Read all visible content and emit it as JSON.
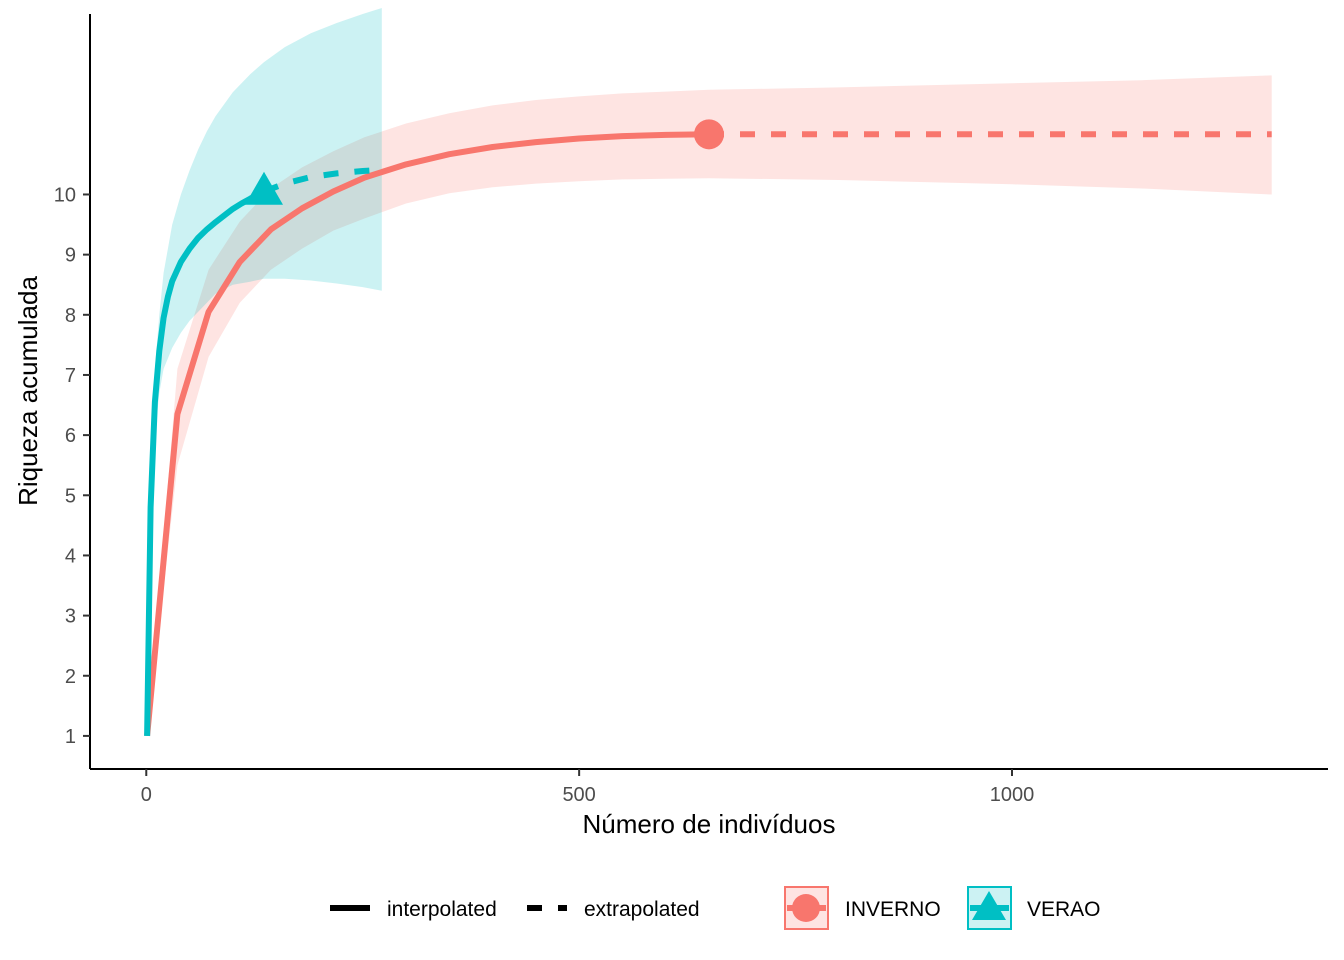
{
  "chart_data": {
    "type": "line",
    "xlabel": "Número de indivíduos",
    "ylabel": "Riqueza acumulada",
    "xlim": [
      -65,
      1365
    ],
    "ylim": [
      0.45,
      13.0
    ],
    "x_ticks": [
      0,
      500,
      1000
    ],
    "x_tick_labels": [
      "0",
      "500",
      "1000"
    ],
    "y_ticks": [
      1,
      2,
      3,
      4,
      5,
      6,
      7,
      8,
      9,
      10
    ],
    "y_tick_labels": [
      "1",
      "2",
      "3",
      "4",
      "5",
      "6",
      "7",
      "8",
      "9",
      "10"
    ],
    "grid": false,
    "legend_position": "bottom",
    "legend": {
      "method_items": [
        {
          "key": "interpolated",
          "label": "interpolated"
        },
        {
          "key": "extrapolated",
          "label": "extrapolated"
        }
      ],
      "group_items": [
        {
          "key": "INVERNO",
          "label": "INVERNO"
        },
        {
          "key": "VERAO",
          "label": "VERAO"
        }
      ]
    },
    "series": [
      {
        "name": "INVERNO",
        "color": "#F8766D",
        "marker": "circle",
        "observed": {
          "x": 650,
          "y": 11.0
        },
        "interpolated": {
          "x": [
            1,
            36,
            72,
            108,
            144,
            180,
            216,
            252,
            300,
            350,
            400,
            450,
            500,
            550,
            600,
            650
          ],
          "y": [
            1.0,
            6.35,
            8.05,
            8.88,
            9.42,
            9.77,
            10.05,
            10.28,
            10.5,
            10.67,
            10.79,
            10.87,
            10.93,
            10.97,
            10.99,
            11.0
          ]
        },
        "extrapolated": {
          "x": [
            650,
            800,
            1000,
            1150,
            1300
          ],
          "y": [
            11.0,
            11.0,
            11.0,
            11.0,
            11.0
          ]
        },
        "ci_lower": {
          "x": [
            1,
            36,
            72,
            108,
            144,
            180,
            216,
            252,
            300,
            350,
            400,
            450,
            500,
            550,
            600,
            650,
            800,
            1000,
            1150,
            1300
          ],
          "y": [
            1.0,
            5.5,
            7.3,
            8.2,
            8.75,
            9.1,
            9.4,
            9.6,
            9.85,
            10.02,
            10.12,
            10.18,
            10.22,
            10.25,
            10.26,
            10.27,
            10.24,
            10.17,
            10.1,
            10.0
          ]
        },
        "ci_upper": {
          "x": [
            1,
            36,
            72,
            108,
            144,
            180,
            216,
            252,
            300,
            350,
            400,
            450,
            500,
            550,
            600,
            650,
            800,
            1000,
            1150,
            1300
          ],
          "y": [
            1.0,
            7.1,
            8.75,
            9.55,
            10.1,
            10.45,
            10.72,
            10.95,
            11.18,
            11.35,
            11.48,
            11.57,
            11.63,
            11.68,
            11.71,
            11.74,
            11.78,
            11.85,
            11.9,
            11.98
          ]
        }
      },
      {
        "name": "VERAO",
        "color": "#00BFC4",
        "marker": "triangle",
        "observed": {
          "x": 136,
          "y": 10.05
        },
        "interpolated": {
          "x": [
            1,
            5,
            10,
            15,
            20,
            25,
            30,
            40,
            50,
            60,
            70,
            80,
            90,
            100,
            110,
            120,
            136
          ],
          "y": [
            1.0,
            4.8,
            6.55,
            7.4,
            7.95,
            8.3,
            8.56,
            8.88,
            9.1,
            9.28,
            9.42,
            9.54,
            9.65,
            9.76,
            9.85,
            9.93,
            10.05
          ]
        },
        "extrapolated": {
          "x": [
            136,
            160,
            190,
            220,
            250,
            272
          ],
          "y": [
            10.05,
            10.18,
            10.29,
            10.35,
            10.39,
            10.41
          ]
        },
        "ci_lower": {
          "x": [
            1,
            5,
            10,
            15,
            20,
            30,
            40,
            50,
            60,
            70,
            80,
            100,
            120,
            136,
            160,
            190,
            220,
            250,
            272
          ],
          "y": [
            1.0,
            4.4,
            6.0,
            6.7,
            7.1,
            7.45,
            7.7,
            7.9,
            8.05,
            8.2,
            8.35,
            8.5,
            8.55,
            8.6,
            8.6,
            8.57,
            8.52,
            8.46,
            8.4
          ]
        },
        "ci_upper": {
          "x": [
            1,
            5,
            10,
            15,
            20,
            30,
            40,
            50,
            60,
            70,
            80,
            100,
            120,
            136,
            160,
            190,
            220,
            250,
            272
          ],
          "y": [
            1.0,
            5.2,
            7.1,
            8.0,
            8.7,
            9.5,
            10.0,
            10.4,
            10.75,
            11.05,
            11.3,
            11.7,
            12.0,
            12.2,
            12.45,
            12.68,
            12.85,
            13.0,
            13.1
          ]
        }
      }
    ]
  }
}
